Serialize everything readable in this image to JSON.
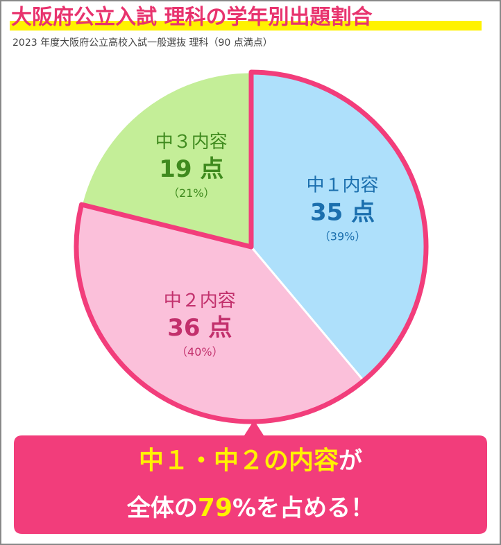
{
  "chart_data": {
    "type": "pie",
    "title": "大阪府公立入試 理科の学年別出題割合",
    "subtitle": "2023 年度大阪府公立高校入試一般選抜 理科（90 点満点）",
    "categories": [
      "中１内容",
      "中２内容",
      "中３内容"
    ],
    "values": [
      35,
      36,
      19
    ],
    "value_labels": [
      "35 点",
      "36 点",
      "19 点"
    ],
    "shares": [
      39,
      40,
      21
    ],
    "share_labels": [
      "（39%）",
      "（40%）",
      "（21%）"
    ],
    "colors": [
      "#aee0fb",
      "#fbc0da",
      "#c4ee98"
    ],
    "label_colors": [
      "#1b6fae",
      "#c2306c",
      "#3f8a1e"
    ],
    "outline_color": "#f23d7b"
  },
  "callout": {
    "line1": [
      "中１・中２の内容",
      "が"
    ],
    "line2": [
      "全体の",
      "79",
      "%を占める！"
    ]
  }
}
